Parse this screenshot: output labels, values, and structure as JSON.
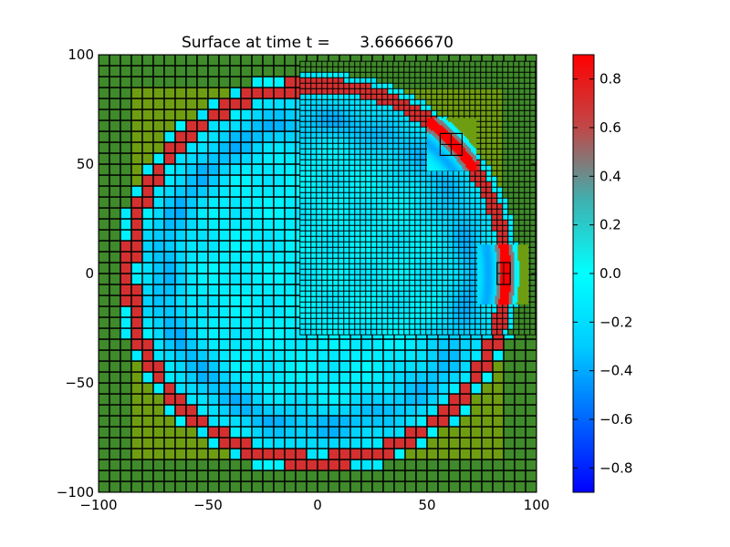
{
  "chart_data": {
    "type": "heatmap",
    "title": "Surface at time t =      3.66666670",
    "xlabel": "",
    "ylabel": "",
    "xlim": [
      -100,
      100
    ],
    "ylim": [
      -100,
      100
    ],
    "xticks": [
      -100,
      -50,
      0,
      50,
      100
    ],
    "yticks": [
      -100,
      -50,
      0,
      50,
      100
    ],
    "grid": false,
    "colorbar": {
      "vmin": -0.9,
      "vmax": 0.9,
      "ticks": [
        -0.8,
        -0.6,
        -0.4,
        -0.2,
        0.0,
        0.2,
        0.4,
        0.6,
        0.8
      ],
      "tick_labels": [
        "−0.8",
        "−0.6",
        "−0.4",
        "−0.2",
        "0.0",
        "0.2",
        "0.4",
        "0.6",
        "0.8"
      ],
      "colormap": [
        [
          -0.9,
          "#0000ff"
        ],
        [
          -0.3,
          "#00ccff"
        ],
        [
          0.0,
          "#00ffff"
        ],
        [
          0.3,
          "#3fb0b0"
        ],
        [
          0.6,
          "#c04848"
        ],
        [
          0.9,
          "#ff0000"
        ]
      ]
    },
    "dry_land_colors": [
      "#6f9d12",
      "#3f8a2a"
    ],
    "surface": {
      "description_values": {
        "wave_front_radius": 86,
        "wave_front_value": 0.7,
        "interior_value": -0.1,
        "interior_dip_value": -0.35,
        "land_radius": 92
      }
    },
    "refined_patches": [
      {
        "level": 2,
        "xlim": [
          -8,
          100
        ],
        "ylim": [
          -28,
          95
        ]
      },
      {
        "level": 3,
        "xlim": [
          50,
          72
        ],
        "ylim": [
          47,
          71
        ]
      },
      {
        "level": 3,
        "xlim": [
          73,
          96
        ],
        "ylim": [
          -14,
          13
        ]
      }
    ],
    "sub_patches": [
      {
        "xlim": [
          56,
          66
        ],
        "ylim": [
          54,
          64
        ]
      },
      {
        "xlim": [
          82,
          88
        ],
        "ylim": [
          -5,
          5
        ]
      }
    ]
  }
}
